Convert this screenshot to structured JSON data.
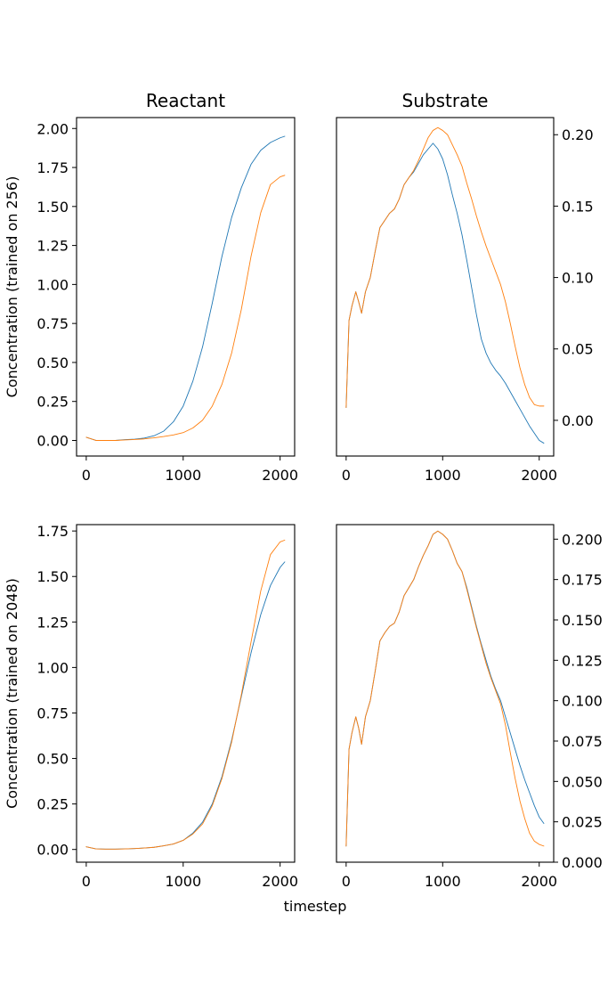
{
  "figure": {
    "xlabel": "timestep"
  },
  "colors": {
    "series_1": "#1f77b4",
    "series_2": "#ff7f0e"
  },
  "chart_data": [
    {
      "type": "line",
      "title": "Reactant",
      "xlabel": "",
      "ylabel": "Concentration (trained on 256)",
      "xlim": [
        -100,
        2150
      ],
      "ylim": [
        -0.1,
        2.07
      ],
      "xticks": [
        0,
        1000,
        2000
      ],
      "xtick_labels": [
        "0",
        "1000",
        "2000"
      ],
      "yticks": [
        0,
        0.25,
        0.5,
        0.75,
        1.0,
        1.25,
        1.5,
        1.75,
        2.0
      ],
      "ytick_labels": [
        "0.00",
        "0.25",
        "0.50",
        "0.75",
        "1.00",
        "1.25",
        "1.50",
        "1.75",
        "2.00"
      ],
      "y_axis_side": "left",
      "grid": false,
      "series": [
        {
          "x": [
            0,
            100,
            200,
            300,
            400,
            500,
            600,
            700,
            800,
            900,
            1000,
            1100,
            1200,
            1300,
            1400,
            1500,
            1600,
            1700,
            1800,
            1900,
            2000,
            2048
          ],
          "y": [
            0.02,
            0.0,
            0.0,
            0.0,
            0.005,
            0.008,
            0.015,
            0.03,
            0.06,
            0.12,
            0.22,
            0.38,
            0.6,
            0.88,
            1.18,
            1.43,
            1.62,
            1.77,
            1.86,
            1.91,
            1.94,
            1.95
          ]
        },
        {
          "x": [
            0,
            100,
            200,
            300,
            400,
            500,
            600,
            700,
            800,
            900,
            1000,
            1100,
            1200,
            1300,
            1400,
            1500,
            1600,
            1700,
            1800,
            1900,
            2000,
            2048
          ],
          "y": [
            0.02,
            0.0,
            0.0,
            0.0,
            0.003,
            0.006,
            0.01,
            0.017,
            0.025,
            0.035,
            0.05,
            0.08,
            0.13,
            0.22,
            0.36,
            0.56,
            0.84,
            1.18,
            1.46,
            1.64,
            1.69,
            1.7
          ]
        }
      ]
    },
    {
      "type": "line",
      "title": "Substrate",
      "xlabel": "",
      "ylabel": "",
      "xlim": [
        -100,
        2150
      ],
      "ylim": [
        -0.025,
        0.212
      ],
      "xticks": [
        0,
        1000,
        2000
      ],
      "xtick_labels": [
        "0",
        "1000",
        "2000"
      ],
      "yticks": [
        0.0,
        0.05,
        0.1,
        0.15,
        0.2
      ],
      "ytick_labels": [
        "0.00",
        "0.05",
        "0.10",
        "0.15",
        "0.20"
      ],
      "y_axis_side": "right",
      "grid": false,
      "series": [
        {
          "x": [
            0,
            30,
            60,
            100,
            130,
            160,
            200,
            250,
            300,
            350,
            400,
            450,
            500,
            550,
            600,
            650,
            700,
            750,
            800,
            850,
            900,
            950,
            1000,
            1050,
            1100,
            1150,
            1200,
            1250,
            1300,
            1350,
            1400,
            1450,
            1500,
            1550,
            1600,
            1650,
            1700,
            1750,
            1800,
            1850,
            1900,
            1950,
            2000,
            2048
          ],
          "y": [
            0.009,
            0.07,
            0.08,
            0.09,
            0.083,
            0.075,
            0.09,
            0.1,
            0.118,
            0.135,
            0.14,
            0.145,
            0.148,
            0.155,
            0.165,
            0.17,
            0.174,
            0.18,
            0.186,
            0.19,
            0.194,
            0.19,
            0.183,
            0.172,
            0.158,
            0.145,
            0.13,
            0.112,
            0.093,
            0.074,
            0.057,
            0.047,
            0.04,
            0.035,
            0.031,
            0.026,
            0.02,
            0.014,
            0.008,
            0.002,
            -0.004,
            -0.009,
            -0.014,
            -0.016
          ]
        },
        {
          "x": [
            0,
            30,
            60,
            100,
            130,
            160,
            200,
            250,
            300,
            350,
            400,
            450,
            500,
            550,
            600,
            650,
            700,
            750,
            800,
            850,
            900,
            950,
            1000,
            1050,
            1100,
            1150,
            1200,
            1250,
            1300,
            1350,
            1400,
            1450,
            1500,
            1550,
            1600,
            1650,
            1700,
            1750,
            1800,
            1850,
            1900,
            1950,
            2000,
            2048
          ],
          "y": [
            0.009,
            0.07,
            0.08,
            0.09,
            0.083,
            0.075,
            0.09,
            0.1,
            0.118,
            0.135,
            0.14,
            0.145,
            0.148,
            0.155,
            0.165,
            0.17,
            0.175,
            0.182,
            0.19,
            0.198,
            0.203,
            0.205,
            0.203,
            0.2,
            0.193,
            0.186,
            0.178,
            0.166,
            0.155,
            0.143,
            0.132,
            0.122,
            0.113,
            0.104,
            0.095,
            0.083,
            0.068,
            0.052,
            0.037,
            0.025,
            0.016,
            0.011,
            0.01,
            0.01
          ]
        }
      ]
    },
    {
      "type": "line",
      "title": "",
      "xlabel": "",
      "ylabel": "Concentration (trained on 2048)",
      "xlim": [
        -100,
        2150
      ],
      "ylim": [
        -0.07,
        1.785
      ],
      "xticks": [
        0,
        1000,
        2000
      ],
      "xtick_labels": [
        "0",
        "1000",
        "2000"
      ],
      "yticks": [
        0,
        0.25,
        0.5,
        0.75,
        1.0,
        1.25,
        1.5,
        1.75
      ],
      "ytick_labels": [
        "0.00",
        "0.25",
        "0.50",
        "0.75",
        "1.00",
        "1.25",
        "1.50",
        "1.75"
      ],
      "y_axis_side": "left",
      "grid": false,
      "series": [
        {
          "x": [
            0,
            100,
            200,
            300,
            400,
            500,
            600,
            700,
            800,
            900,
            1000,
            1100,
            1200,
            1300,
            1400,
            1500,
            1600,
            1700,
            1800,
            1900,
            2000,
            2048
          ],
          "y": [
            0.015,
            0.003,
            0.002,
            0.002,
            0.003,
            0.005,
            0.008,
            0.012,
            0.02,
            0.03,
            0.05,
            0.09,
            0.15,
            0.25,
            0.4,
            0.6,
            0.84,
            1.08,
            1.29,
            1.45,
            1.55,
            1.58
          ]
        },
        {
          "x": [
            0,
            100,
            200,
            300,
            400,
            500,
            600,
            700,
            800,
            900,
            1000,
            1100,
            1200,
            1300,
            1400,
            1500,
            1600,
            1700,
            1800,
            1900,
            2000,
            2048
          ],
          "y": [
            0.015,
            0.003,
            0.002,
            0.002,
            0.003,
            0.005,
            0.008,
            0.012,
            0.02,
            0.03,
            0.05,
            0.085,
            0.14,
            0.24,
            0.39,
            0.59,
            0.85,
            1.14,
            1.42,
            1.62,
            1.69,
            1.7
          ]
        }
      ]
    },
    {
      "type": "line",
      "title": "",
      "xlabel": "",
      "ylabel": "",
      "xlim": [
        -100,
        2150
      ],
      "ylim": [
        0.0,
        0.209
      ],
      "xticks": [
        0,
        1000,
        2000
      ],
      "xtick_labels": [
        "0",
        "1000",
        "2000"
      ],
      "yticks": [
        0.0,
        0.025,
        0.05,
        0.075,
        0.1,
        0.125,
        0.15,
        0.175,
        0.2
      ],
      "ytick_labels": [
        "0.000",
        "0.025",
        "0.050",
        "0.075",
        "0.100",
        "0.125",
        "0.150",
        "0.175",
        "0.200"
      ],
      "y_axis_side": "right",
      "grid": false,
      "series": [
        {
          "x": [
            0,
            30,
            60,
            100,
            130,
            160,
            200,
            250,
            300,
            350,
            400,
            450,
            500,
            550,
            600,
            650,
            700,
            750,
            800,
            850,
            900,
            950,
            1000,
            1050,
            1100,
            1150,
            1200,
            1250,
            1300,
            1350,
            1400,
            1450,
            1500,
            1550,
            1600,
            1650,
            1700,
            1750,
            1800,
            1850,
            1900,
            1950,
            2000,
            2048
          ],
          "y": [
            0.01,
            0.07,
            0.08,
            0.09,
            0.083,
            0.073,
            0.09,
            0.1,
            0.118,
            0.137,
            0.142,
            0.146,
            0.148,
            0.155,
            0.165,
            0.17,
            0.175,
            0.183,
            0.19,
            0.196,
            0.203,
            0.205,
            0.203,
            0.2,
            0.193,
            0.185,
            0.18,
            0.17,
            0.158,
            0.146,
            0.135,
            0.125,
            0.115,
            0.107,
            0.1,
            0.09,
            0.08,
            0.07,
            0.06,
            0.051,
            0.043,
            0.035,
            0.028,
            0.024
          ]
        },
        {
          "x": [
            0,
            30,
            60,
            100,
            130,
            160,
            200,
            250,
            300,
            350,
            400,
            450,
            500,
            550,
            600,
            650,
            700,
            750,
            800,
            850,
            900,
            950,
            1000,
            1050,
            1100,
            1150,
            1200,
            1250,
            1300,
            1350,
            1400,
            1450,
            1500,
            1550,
            1600,
            1650,
            1700,
            1750,
            1800,
            1850,
            1900,
            1950,
            2000,
            2048
          ],
          "y": [
            0.01,
            0.07,
            0.08,
            0.09,
            0.083,
            0.073,
            0.09,
            0.1,
            0.118,
            0.137,
            0.142,
            0.146,
            0.148,
            0.155,
            0.165,
            0.17,
            0.175,
            0.183,
            0.19,
            0.196,
            0.203,
            0.205,
            0.203,
            0.2,
            0.193,
            0.185,
            0.18,
            0.169,
            0.157,
            0.145,
            0.134,
            0.123,
            0.114,
            0.106,
            0.098,
            0.085,
            0.068,
            0.052,
            0.038,
            0.027,
            0.018,
            0.013,
            0.011,
            0.01
          ]
        }
      ]
    }
  ]
}
